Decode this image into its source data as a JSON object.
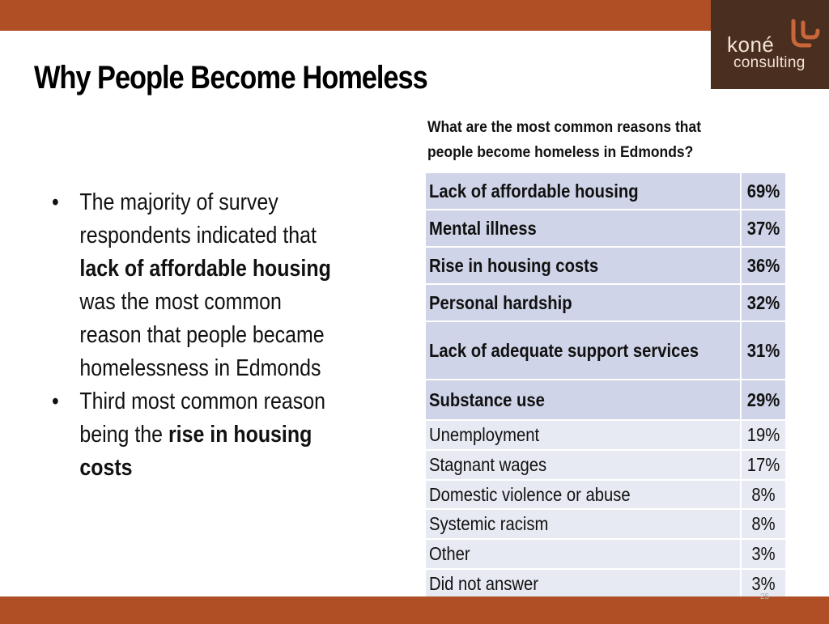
{
  "slide": {
    "title_part1": "Why People",
    "title_part2": "Become",
    "title_part3": "Homeless",
    "page_number": "25"
  },
  "logo": {
    "name": "koné",
    "sub": "consulting",
    "brand_color": "#4a2e1f"
  },
  "question": "What are the most common reasons that people become homeless in Edmonds?",
  "bullets": {
    "b1_pre": "The majority of survey respondents indicated that ",
    "b1_bold": "lack of affordable housing",
    "b1_post": " was the most common reason that people became homelessness in Edmonds",
    "b2_pre": "Third most common reason being the ",
    "b2_bold": "rise in housing costs"
  },
  "table": {
    "rows": [
      {
        "label": "Lack of affordable housing",
        "value": "69%",
        "bold": true
      },
      {
        "label": "Mental illness",
        "value": "37%",
        "bold": true
      },
      {
        "label": "Rise in housing costs",
        "value": "36%",
        "bold": true
      },
      {
        "label": "Personal hardship",
        "value": "32%",
        "bold": true
      },
      {
        "label": "Lack of adequate support services",
        "value": "31%",
        "bold": true
      },
      {
        "label": "Substance use",
        "value": "29%",
        "bold": true
      },
      {
        "label": "Unemployment",
        "value": "19%",
        "bold": false
      },
      {
        "label": "Stagnant wages",
        "value": "17%",
        "bold": false
      },
      {
        "label": "Domestic violence or abuse",
        "value": "8%",
        "bold": false
      },
      {
        "label": "Systemic racism",
        "value": "8%",
        "bold": false
      },
      {
        "label": "Other",
        "value": "3%",
        "bold": false
      },
      {
        "label": "Did not answer",
        "value": "3%",
        "bold": false
      }
    ]
  },
  "colors": {
    "accent_bar": "#b04f26",
    "highlight_row": "#cfd4e8",
    "normal_row": "#e8eaf3"
  }
}
